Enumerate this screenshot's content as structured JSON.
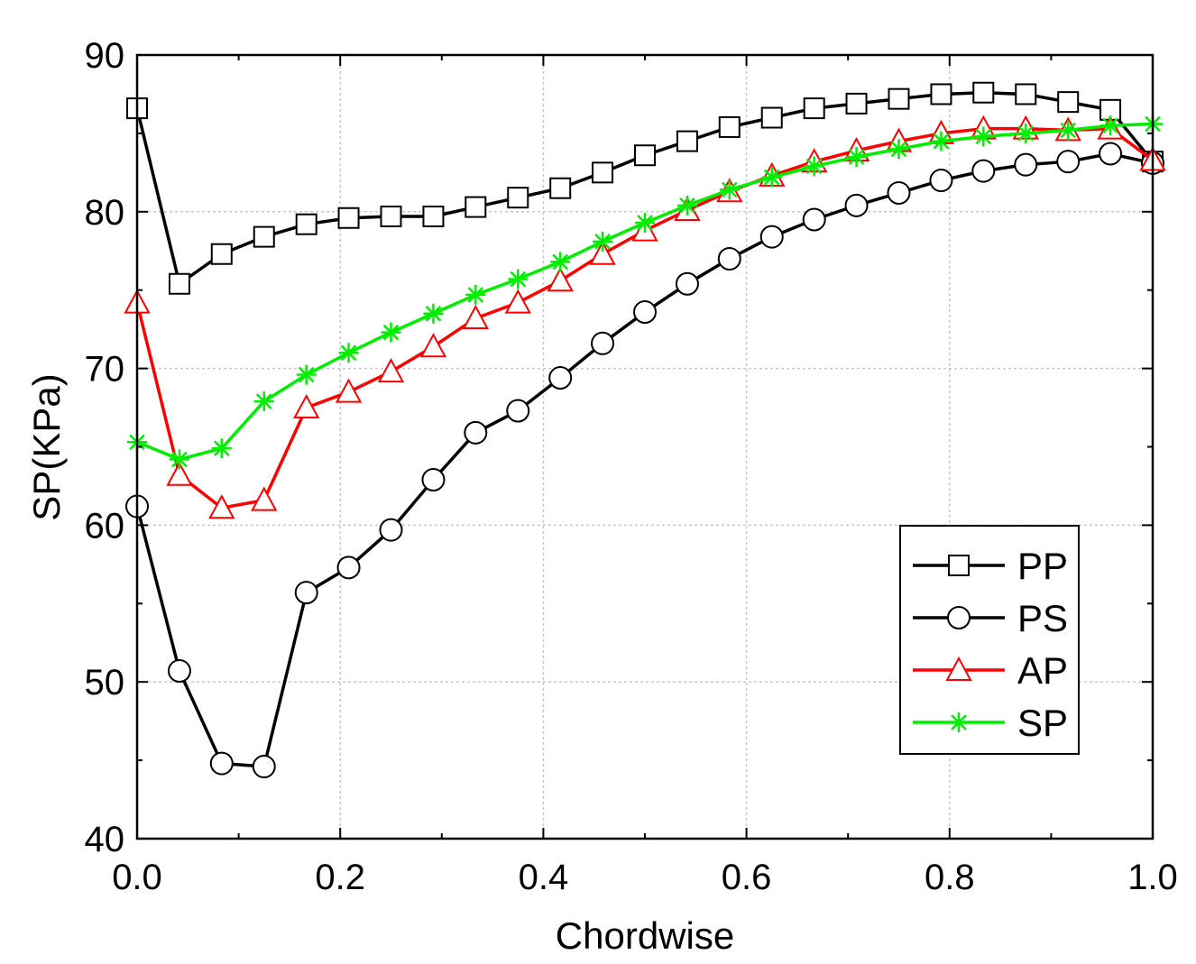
{
  "chart_data": {
    "type": "line",
    "title": "",
    "xlabel": "Chordwise",
    "ylabel": "SP(KPa)",
    "xlim": [
      0.0,
      1.0
    ],
    "ylim": [
      40,
      90
    ],
    "xticks": [
      "0.0",
      "0.2",
      "0.4",
      "0.6",
      "0.8",
      "1.0"
    ],
    "yticks": [
      "40",
      "50",
      "60",
      "70",
      "80",
      "90"
    ],
    "grid": true,
    "legend_position": "bottom-right",
    "x": [
      0.0,
      0.0417,
      0.0833,
      0.125,
      0.1667,
      0.2083,
      0.25,
      0.2917,
      0.3333,
      0.375,
      0.4167,
      0.4583,
      0.5,
      0.5417,
      0.5833,
      0.625,
      0.6667,
      0.7083,
      0.75,
      0.7917,
      0.8333,
      0.875,
      0.9167,
      0.9583,
      1.0
    ],
    "series": [
      {
        "name": "PP",
        "color": "#000000",
        "marker": "square",
        "values": [
          86.6,
          75.4,
          77.3,
          78.4,
          79.2,
          79.6,
          79.7,
          79.7,
          80.3,
          80.9,
          81.5,
          82.5,
          83.6,
          84.5,
          85.4,
          86.0,
          86.6,
          86.9,
          87.2,
          87.5,
          87.6,
          87.5,
          87.0,
          86.5,
          83.2
        ]
      },
      {
        "name": "PS",
        "color": "#000000",
        "marker": "circle",
        "values": [
          61.2,
          50.7,
          44.8,
          44.6,
          55.7,
          57.3,
          59.7,
          62.9,
          65.9,
          67.3,
          69.4,
          71.6,
          73.6,
          75.4,
          77.0,
          78.4,
          79.5,
          80.4,
          81.2,
          82.0,
          82.6,
          83.0,
          83.2,
          83.7,
          83.1
        ]
      },
      {
        "name": "AP",
        "color": "#ff0000",
        "marker": "triangle",
        "values": [
          74.2,
          63.2,
          61.1,
          61.6,
          67.5,
          68.5,
          69.8,
          71.4,
          73.2,
          74.2,
          75.6,
          77.3,
          78.8,
          80.1,
          81.3,
          82.3,
          83.2,
          83.9,
          84.5,
          85.0,
          85.3,
          85.3,
          85.2,
          85.3,
          83.3
        ]
      },
      {
        "name": "SP",
        "color": "#00ee00",
        "marker": "asterisk",
        "values": [
          65.3,
          64.2,
          64.9,
          67.9,
          69.6,
          71.0,
          72.3,
          73.5,
          74.7,
          75.7,
          76.8,
          78.1,
          79.3,
          80.4,
          81.4,
          82.2,
          82.9,
          83.5,
          84.0,
          84.5,
          84.8,
          85.0,
          85.2,
          85.5,
          85.6
        ]
      }
    ]
  }
}
